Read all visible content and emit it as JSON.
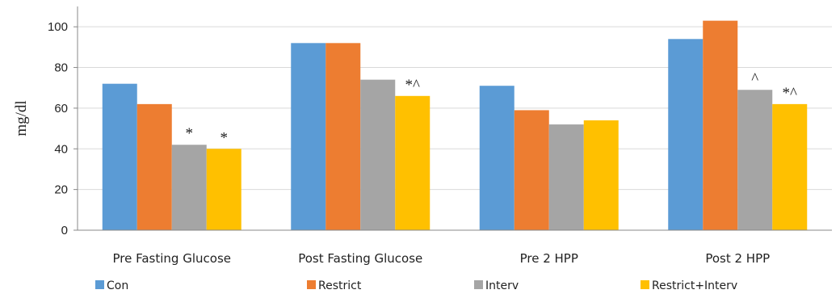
{
  "chart_data": {
    "type": "bar",
    "title": "",
    "xlabel": "",
    "ylabel": "mg/dl",
    "ylim": [
      0,
      100
    ],
    "yticks": [
      0,
      20,
      40,
      60,
      80,
      100
    ],
    "grid": true,
    "legend_position": "bottom",
    "categories": [
      "Pre Fasting Glucose",
      "Post Fasting Glucose",
      "Pre 2  HPP",
      "Post 2 HPP"
    ],
    "series": [
      {
        "name": "Con",
        "color": "#5b9bd5",
        "values": [
          72,
          92,
          71,
          94
        ]
      },
      {
        "name": "Restrict",
        "color": "#ed7d31",
        "values": [
          62,
          92,
          59,
          103
        ]
      },
      {
        "name": "Interv",
        "color": "#a5a5a5",
        "values": [
          42,
          74,
          52,
          69
        ]
      },
      {
        "name": "Restrict+Interv",
        "color": "#ffc000",
        "values": [
          40,
          66,
          54,
          62
        ]
      }
    ],
    "annotations": [
      {
        "category": 0,
        "series": 2,
        "text": "*"
      },
      {
        "category": 0,
        "series": 3,
        "text": "*"
      },
      {
        "category": 1,
        "series": 3,
        "text": "*^"
      },
      {
        "category": 3,
        "series": 2,
        "text": "^"
      },
      {
        "category": 3,
        "series": 3,
        "text": "*^"
      }
    ]
  }
}
